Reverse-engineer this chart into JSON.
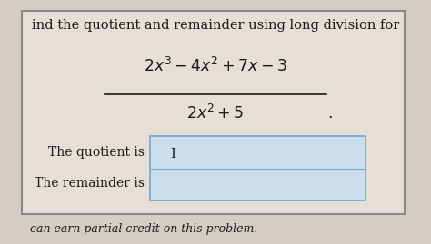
{
  "bg_color": "#d4cdc5",
  "inner_bg_color": "#e5dfd8",
  "border_color": "#888888",
  "text_color": "#1a1a1a",
  "line1": "ind the quotient and remainder using long division for",
  "numerator": "$2x^3 - 4x^2 + 7x - 3$",
  "denominator": "$2x^2 + 5$",
  "label_quotient": "The quotient is",
  "label_remainder": "The remainder is",
  "footer": "can earn partial credit on this problem.",
  "box_color": "#ccdded",
  "box_border": "#7aabcc",
  "title_fontsize": 10.5,
  "math_fontsize": 12.5,
  "label_fontsize": 10,
  "footer_fontsize": 9
}
